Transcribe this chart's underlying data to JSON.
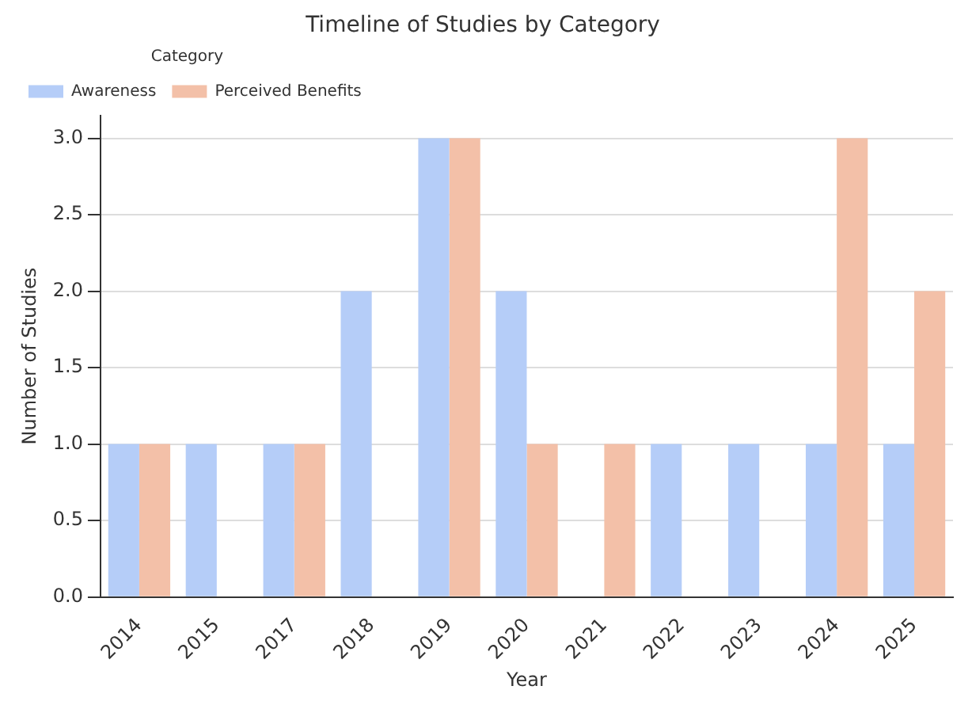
{
  "chart_data": {
    "type": "bar",
    "title": "Timeline of Studies by Category",
    "xlabel": "Year",
    "ylabel": "Number of Studies",
    "legend_title": "Category",
    "categories": [
      "2014",
      "2015",
      "2017",
      "2018",
      "2019",
      "2020",
      "2021",
      "2022",
      "2023",
      "2024",
      "2025"
    ],
    "series": [
      {
        "name": "Awareness",
        "color": "#b5cdf8",
        "values": [
          1,
          1,
          1,
          2,
          3,
          2,
          0,
          1,
          1,
          1,
          1
        ]
      },
      {
        "name": "Perceived Benefits",
        "color": "#f3c0a8",
        "values": [
          1,
          0,
          1,
          0,
          3,
          1,
          1,
          0,
          0,
          3,
          2
        ]
      }
    ],
    "ylim": [
      0,
      3.15
    ],
    "yticks": [
      {
        "value": 0,
        "label": "0.0"
      },
      {
        "value": 0.5,
        "label": "0.5"
      },
      {
        "value": 1,
        "label": "1.0"
      },
      {
        "value": 1.5,
        "label": "1.5"
      },
      {
        "value": 2,
        "label": "2.0"
      },
      {
        "value": 2.5,
        "label": "2.5"
      },
      {
        "value": 3,
        "label": "3.0"
      }
    ],
    "grid": "y",
    "legend": "top left"
  }
}
